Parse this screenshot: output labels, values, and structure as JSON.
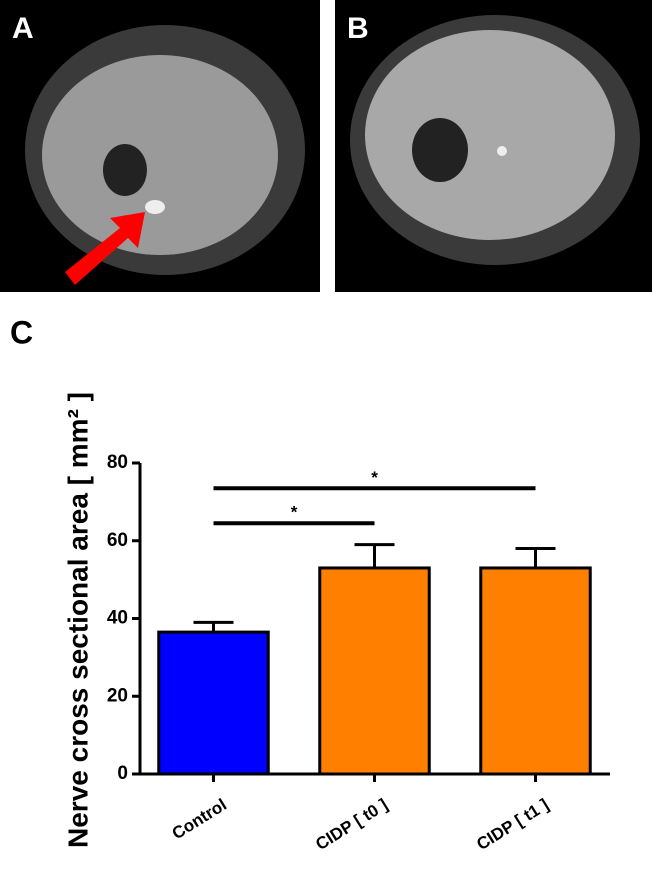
{
  "panel_labels": [
    "A",
    "B",
    "C"
  ],
  "chart_data": {
    "type": "bar",
    "ylabel": "Nerve cross sectional area [ mm² ]",
    "categories": [
      "Control",
      "CIDP [ t0 ]",
      "CIDP [ t1 ]"
    ],
    "values": [
      36.5,
      53,
      53
    ],
    "errors": [
      2.5,
      6,
      5
    ],
    "colors": [
      "#0000ff",
      "#ff8000",
      "#ff8000"
    ],
    "ylim": [
      0,
      80
    ],
    "yticks": [
      0,
      20,
      40,
      60,
      80
    ],
    "annotations": [
      {
        "text": "*",
        "from": 0,
        "to": 1,
        "y": 64.5
      },
      {
        "text": "*",
        "from": 0,
        "to": 2,
        "y": 73.5
      }
    ]
  }
}
